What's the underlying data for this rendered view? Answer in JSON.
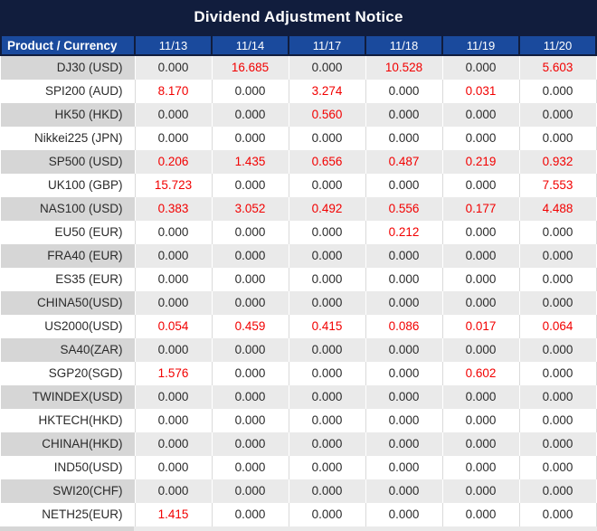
{
  "title": "Dividend Adjustment Notice",
  "chart_data": {
    "type": "table",
    "title": "Dividend Adjustment Notice",
    "columns": [
      "Product / Currency",
      "11/13",
      "11/14",
      "11/17",
      "11/18",
      "11/19",
      "11/20"
    ],
    "rows": [
      {
        "product": "DJ30 (USD)",
        "values": [
          "0.000",
          "16.685",
          "0.000",
          "10.528",
          "0.000",
          "5.603"
        ],
        "red": [
          false,
          true,
          false,
          true,
          false,
          true
        ]
      },
      {
        "product": "SPI200 (AUD)",
        "values": [
          "8.170",
          "0.000",
          "3.274",
          "0.000",
          "0.031",
          "0.000"
        ],
        "red": [
          true,
          false,
          true,
          false,
          true,
          false
        ]
      },
      {
        "product": "HK50 (HKD)",
        "values": [
          "0.000",
          "0.000",
          "0.560",
          "0.000",
          "0.000",
          "0.000"
        ],
        "red": [
          false,
          false,
          true,
          false,
          false,
          false
        ]
      },
      {
        "product": "Nikkei225 (JPN)",
        "values": [
          "0.000",
          "0.000",
          "0.000",
          "0.000",
          "0.000",
          "0.000"
        ],
        "red": [
          false,
          false,
          false,
          false,
          false,
          false
        ]
      },
      {
        "product": "SP500 (USD)",
        "values": [
          "0.206",
          "1.435",
          "0.656",
          "0.487",
          "0.219",
          "0.932"
        ],
        "red": [
          true,
          true,
          true,
          true,
          true,
          true
        ]
      },
      {
        "product": "UK100 (GBP)",
        "values": [
          "15.723",
          "0.000",
          "0.000",
          "0.000",
          "0.000",
          "7.553"
        ],
        "red": [
          true,
          false,
          false,
          false,
          false,
          true
        ]
      },
      {
        "product": "NAS100 (USD)",
        "values": [
          "0.383",
          "3.052",
          "0.492",
          "0.556",
          "0.177",
          "4.488"
        ],
        "red": [
          true,
          true,
          true,
          true,
          true,
          true
        ]
      },
      {
        "product": "EU50 (EUR)",
        "values": [
          "0.000",
          "0.000",
          "0.000",
          "0.212",
          "0.000",
          "0.000"
        ],
        "red": [
          false,
          false,
          false,
          true,
          false,
          false
        ]
      },
      {
        "product": "FRA40 (EUR)",
        "values": [
          "0.000",
          "0.000",
          "0.000",
          "0.000",
          "0.000",
          "0.000"
        ],
        "red": [
          false,
          false,
          false,
          false,
          false,
          false
        ]
      },
      {
        "product": "ES35 (EUR)",
        "values": [
          "0.000",
          "0.000",
          "0.000",
          "0.000",
          "0.000",
          "0.000"
        ],
        "red": [
          false,
          false,
          false,
          false,
          false,
          false
        ]
      },
      {
        "product": "CHINA50(USD)",
        "values": [
          "0.000",
          "0.000",
          "0.000",
          "0.000",
          "0.000",
          "0.000"
        ],
        "red": [
          false,
          false,
          false,
          false,
          false,
          false
        ]
      },
      {
        "product": "US2000(USD)",
        "values": [
          "0.054",
          "0.459",
          "0.415",
          "0.086",
          "0.017",
          "0.064"
        ],
        "red": [
          true,
          true,
          true,
          true,
          true,
          true
        ]
      },
      {
        "product": "SA40(ZAR)",
        "values": [
          "0.000",
          "0.000",
          "0.000",
          "0.000",
          "0.000",
          "0.000"
        ],
        "red": [
          false,
          false,
          false,
          false,
          false,
          false
        ]
      },
      {
        "product": "SGP20(SGD)",
        "values": [
          "1.576",
          "0.000",
          "0.000",
          "0.000",
          "0.602",
          "0.000"
        ],
        "red": [
          true,
          false,
          false,
          false,
          true,
          false
        ]
      },
      {
        "product": "TWINDEX(USD)",
        "values": [
          "0.000",
          "0.000",
          "0.000",
          "0.000",
          "0.000",
          "0.000"
        ],
        "red": [
          false,
          false,
          false,
          false,
          false,
          false
        ]
      },
      {
        "product": "HKTECH(HKD)",
        "values": [
          "0.000",
          "0.000",
          "0.000",
          "0.000",
          "0.000",
          "0.000"
        ],
        "red": [
          false,
          false,
          false,
          false,
          false,
          false
        ]
      },
      {
        "product": "CHINAH(HKD)",
        "values": [
          "0.000",
          "0.000",
          "0.000",
          "0.000",
          "0.000",
          "0.000"
        ],
        "red": [
          false,
          false,
          false,
          false,
          false,
          false
        ]
      },
      {
        "product": "IND50(USD)",
        "values": [
          "0.000",
          "0.000",
          "0.000",
          "0.000",
          "0.000",
          "0.000"
        ],
        "red": [
          false,
          false,
          false,
          false,
          false,
          false
        ]
      },
      {
        "product": "SWI20(CHF)",
        "values": [
          "0.000",
          "0.000",
          "0.000",
          "0.000",
          "0.000",
          "0.000"
        ],
        "red": [
          false,
          false,
          false,
          false,
          false,
          false
        ]
      },
      {
        "product": "NETH25(EUR)",
        "values": [
          "1.415",
          "0.000",
          "0.000",
          "0.000",
          "0.000",
          "0.000"
        ],
        "red": [
          true,
          false,
          false,
          false,
          false,
          false
        ]
      }
    ]
  },
  "colors": {
    "title_bar_bg": "#111d3d",
    "header_bg": "#1a4a9d",
    "header_border": "#111d3d",
    "row_stripe_bg": "#eaeaea",
    "product_stripe_bg": "#d6d6d6",
    "value_text": "#2b2b2b",
    "highlight_red": "#f20000",
    "header_text": "#ffffff"
  }
}
